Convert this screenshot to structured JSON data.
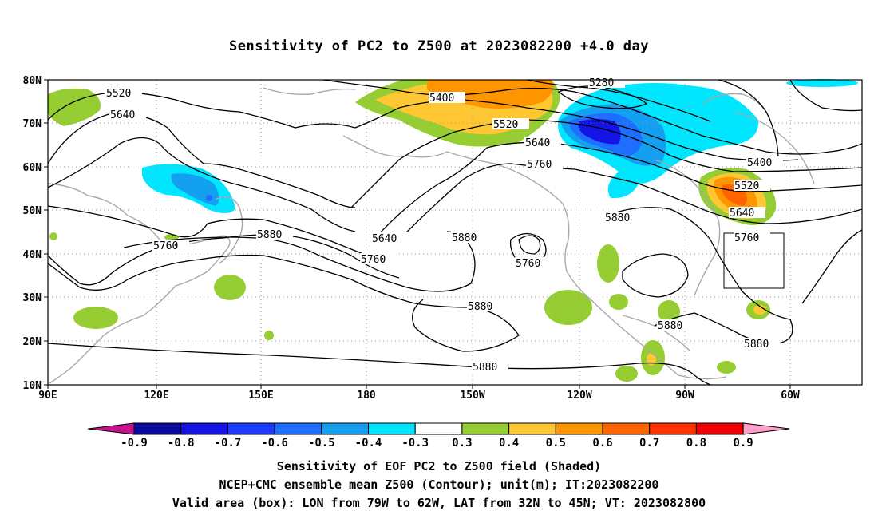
{
  "title": "Sensitivity of PC2 to Z500 at 2023082200 +4.0 day",
  "lat_labels": [
    "80N",
    "70N",
    "60N",
    "50N",
    "40N",
    "30N",
    "20N",
    "10N"
  ],
  "lon_labels": [
    "90E",
    "120E",
    "150E",
    "180",
    "150W",
    "120W",
    "90W",
    "60W"
  ],
  "contour_labels": {
    "c5520a": "5520",
    "c5640a": "5640",
    "c5400": "5400",
    "c5280": "5280",
    "c5520b": "5520",
    "c5640b": "5640",
    "c5760a": "5760",
    "c5400b": "5400",
    "c5520c": "5520",
    "c5640c": "5640",
    "c5760b": "5760",
    "c5880a": "5880",
    "c5640d": "5640",
    "c5760c": "5760",
    "c5880b": "5880",
    "c5760d": "5760",
    "c5880c": "5880",
    "c5880d": "5880",
    "c5880e": "5880",
    "c5880f": "5880",
    "c5760e": "5760"
  },
  "colorbar": {
    "labels": [
      "-0.9",
      "-0.8",
      "-0.7",
      "-0.6",
      "-0.5",
      "-0.4",
      "-0.3",
      "0.3",
      "0.4",
      "0.5",
      "0.6",
      "0.7",
      "0.8",
      "0.9"
    ],
    "colors": [
      "#0a0aa0",
      "#1414e6",
      "#1e3cff",
      "#1e6eff",
      "#14a0f0",
      "#00e6ff",
      "#ffffff",
      "#96cd32",
      "#ffc832",
      "#ff9600",
      "#ff6400",
      "#ff3200",
      "#f00000"
    ],
    "low_end": "#c8148c",
    "high_end": "#ffa0c8"
  },
  "captions": {
    "line1": "Sensitivity of EOF PC2 to Z500 field (Shaded)",
    "line2": "NCEP+CMC ensemble mean Z500 (Contour); unit(m); IT:2023082200",
    "line3": "Valid area (box): LON from 79W to 62W, LAT from 32N to 45N; VT: 2023082800"
  }
}
